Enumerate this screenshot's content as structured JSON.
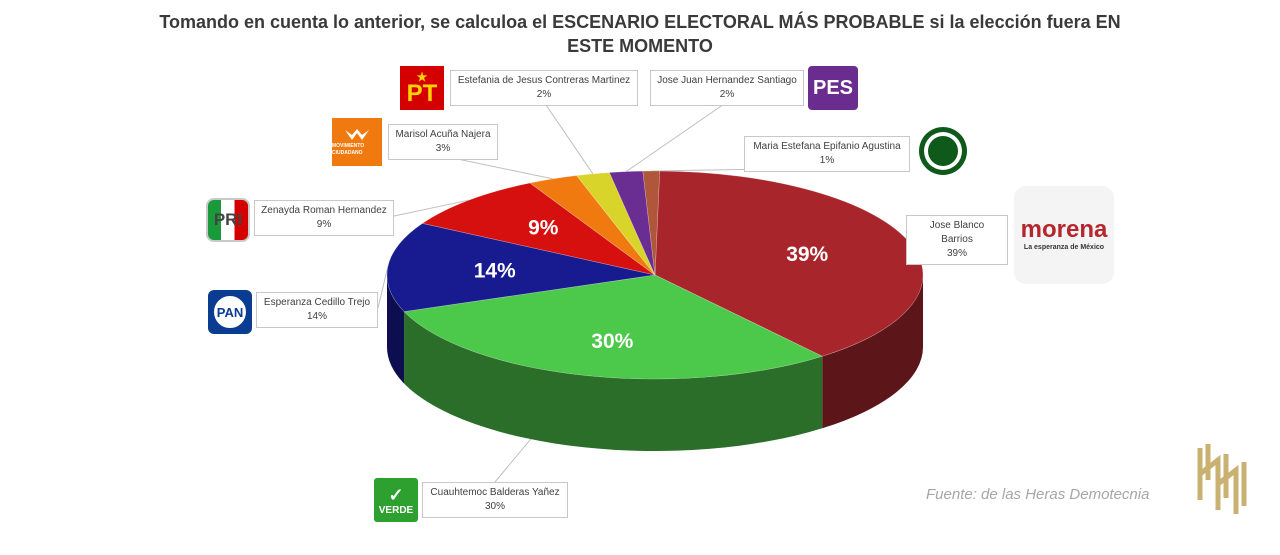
{
  "title": "Tomando en cuenta lo anterior, se calculoa el ESCENARIO ELECTORAL MÁS PROBABLE si la elección fuera EN ESTE MOMENTO",
  "source": "Fuente: de las Heras Demotecnia",
  "logos": {
    "pt": "PT",
    "pes": "PES",
    "morena_name": "morena",
    "morena_tagline": "La esperanza de México",
    "pan": "PAN",
    "pri": "PRI",
    "verde": "VERDE",
    "mc": "MOVIMIENTO CIUDADANO"
  },
  "chart_data": {
    "type": "pie",
    "style": "3d",
    "title": "Tomando en cuenta lo anterior, se calculoa el ESCENARIO ELECTORAL MÁS PROBABLE si la elección fuera EN ESTE MOMENTO",
    "slices": [
      {
        "name": "Jose Blanco Barrios",
        "party": "MORENA",
        "value": 39,
        "label": "39%",
        "color": "#a8262b"
      },
      {
        "name": "Cuauhtemoc Balderas Yañez",
        "party": "VERDE",
        "value": 30,
        "label": "30%",
        "color": "#4cc84a"
      },
      {
        "name": "Esperanza Cedillo Trejo",
        "party": "PAN",
        "value": 14,
        "label": "14%",
        "color": "#181a8f"
      },
      {
        "name": "Zenayda Roman Hernandez",
        "party": "PRI",
        "value": 9,
        "label": "9%",
        "color": "#d60f0f"
      },
      {
        "name": "Marisol Acuña Najera",
        "party": "MC",
        "value": 3,
        "label": "3%",
        "color": "#f07a10"
      },
      {
        "name": "Estefania de Jesus Contreras Martinez",
        "party": "PT",
        "value": 2,
        "label": "2%",
        "color": "#d8d42a"
      },
      {
        "name": "Jose Juan Hernandez Santiago",
        "party": "PES",
        "value": 2,
        "label": "2%",
        "color": "#6a2d91"
      },
      {
        "name": "Maria Estefana Epifanio Agustina",
        "party": "OTHER",
        "value": 1,
        "label": "1%",
        "color": "#b0563a"
      }
    ]
  }
}
